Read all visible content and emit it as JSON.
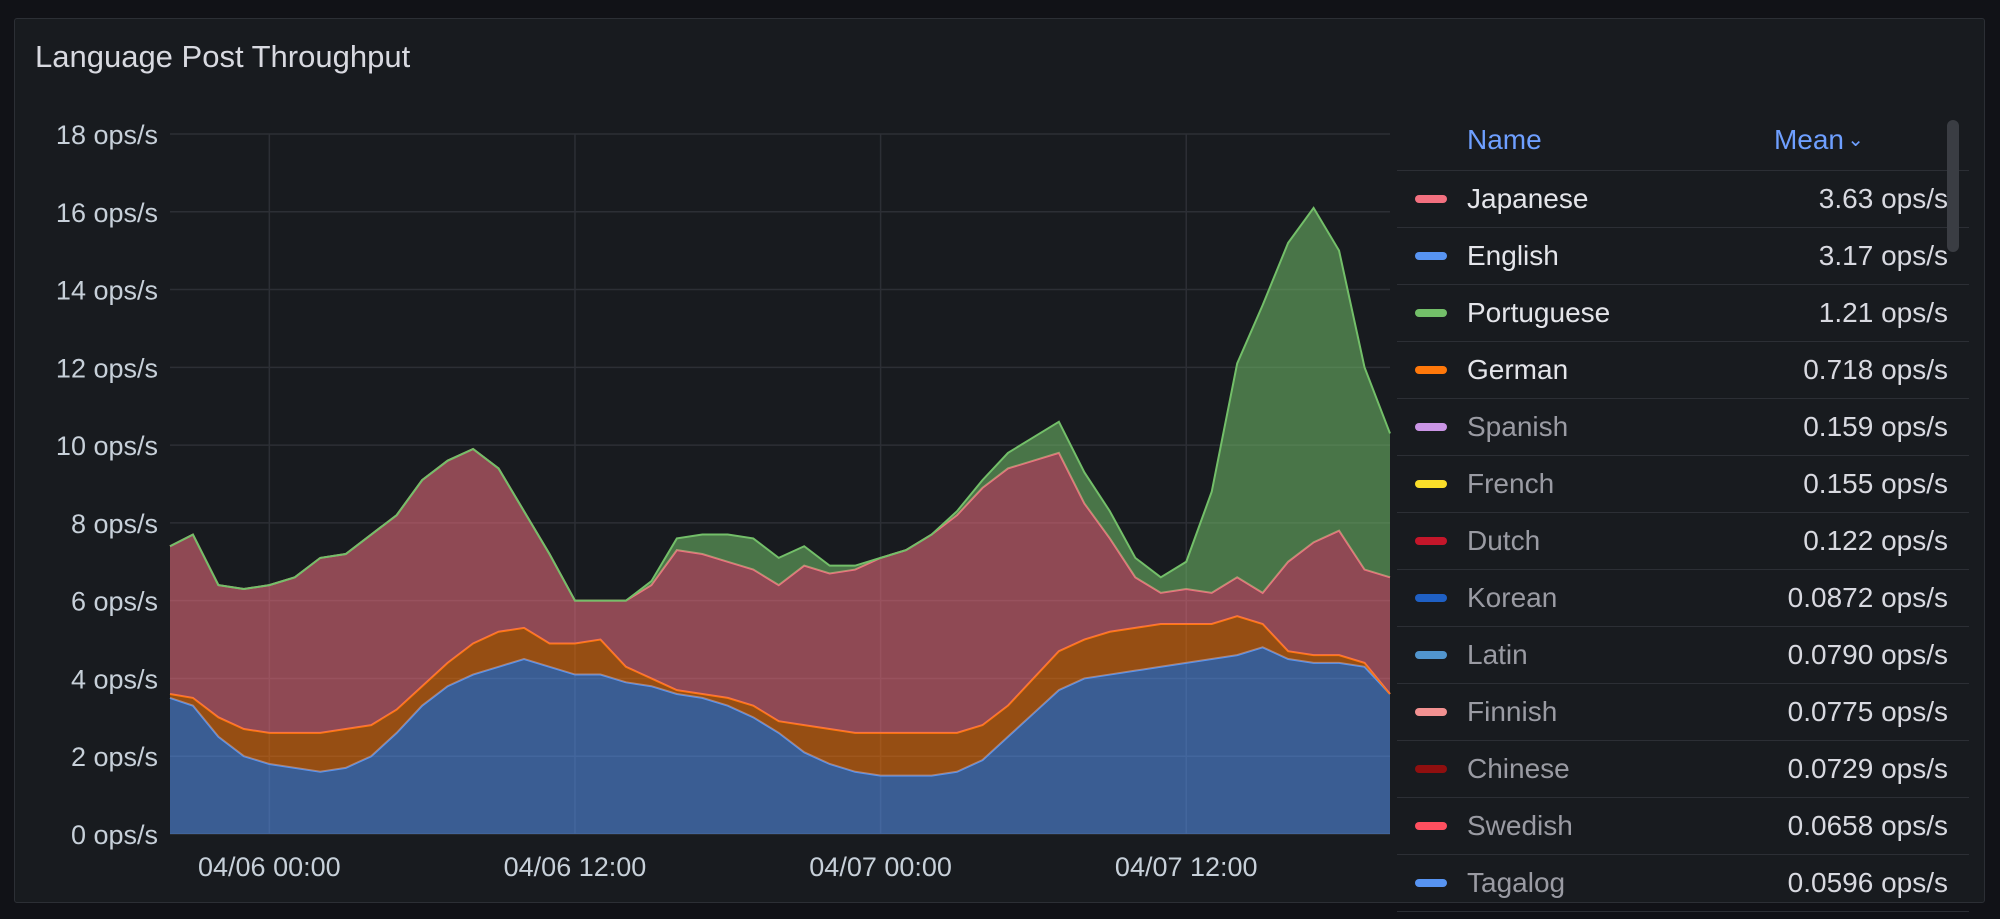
{
  "panel": {
    "title": "Language Post Throughput"
  },
  "legend": {
    "header_name": "Name",
    "header_mean": "Mean",
    "header_chevron": "⌄",
    "items": [
      {
        "name": "Japanese",
        "mean": "3.63 ops/s",
        "color": "#f2707f",
        "active": true
      },
      {
        "name": "English",
        "mean": "3.17 ops/s",
        "color": "#5794f2",
        "active": true
      },
      {
        "name": "Portuguese",
        "mean": "1.21 ops/s",
        "color": "#73bf69",
        "active": true
      },
      {
        "name": "German",
        "mean": "0.718 ops/s",
        "color": "#ff780a",
        "active": true
      },
      {
        "name": "Spanish",
        "mean": "0.159 ops/s",
        "color": "#ca95e5",
        "active": false
      },
      {
        "name": "French",
        "mean": "0.155 ops/s",
        "color": "#fade2a",
        "active": false
      },
      {
        "name": "Dutch",
        "mean": "0.122 ops/s",
        "color": "#c4162a",
        "active": false
      },
      {
        "name": "Korean",
        "mean": "0.0872 ops/s",
        "color": "#1f60c4",
        "active": false
      },
      {
        "name": "Latin",
        "mean": "0.0790 ops/s",
        "color": "#5195ce",
        "active": false
      },
      {
        "name": "Finnish",
        "mean": "0.0775 ops/s",
        "color": "#f29191",
        "active": false
      },
      {
        "name": "Chinese",
        "mean": "0.0729 ops/s",
        "color": "#8f0f0f",
        "active": false
      },
      {
        "name": "Swedish",
        "mean": "0.0658 ops/s",
        "color": "#ff4f5f",
        "active": false
      },
      {
        "name": "Tagalog",
        "mean": "0.0596 ops/s",
        "color": "#5794f2",
        "active": false
      }
    ]
  },
  "chart_data": {
    "type": "area",
    "stacked": true,
    "title": "Language Post Throughput",
    "xlabel": "",
    "ylabel": "",
    "y_unit": "ops/s",
    "ylim": [
      0,
      18
    ],
    "y_ticks": [
      "0 ops/s",
      "2 ops/s",
      "4 ops/s",
      "6 ops/s",
      "8 ops/s",
      "10 ops/s",
      "12 ops/s",
      "14 ops/s",
      "16 ops/s",
      "18 ops/s"
    ],
    "x_ticks": [
      "04/06 00:00",
      "04/06 12:00",
      "04/07 00:00",
      "04/07 12:00"
    ],
    "x_tick_hours": [
      0,
      12,
      24,
      36
    ],
    "xlim_hours": [
      -3.9,
      44
    ],
    "grid": true,
    "legend_position": "right",
    "x_hours": [
      -3.9,
      -3,
      -2,
      -1,
      0,
      1,
      2,
      3,
      4,
      5,
      6,
      7,
      8,
      9,
      10,
      11,
      12,
      13,
      14,
      15,
      16,
      17,
      18,
      19,
      20,
      21,
      22,
      23,
      24,
      25,
      26,
      27,
      28,
      29,
      30,
      31,
      32,
      33,
      34,
      35,
      36,
      37,
      38,
      39,
      40,
      41,
      42,
      43,
      44
    ],
    "series": [
      {
        "name": "English",
        "color": "#5794f2",
        "values": [
          3.5,
          3.3,
          2.5,
          2.0,
          1.8,
          1.7,
          1.6,
          1.7,
          2.0,
          2.6,
          3.3,
          3.8,
          4.1,
          4.3,
          4.5,
          4.3,
          4.1,
          4.1,
          3.9,
          3.8,
          3.6,
          3.5,
          3.3,
          3.0,
          2.6,
          2.1,
          1.8,
          1.6,
          1.5,
          1.5,
          1.5,
          1.6,
          1.9,
          2.5,
          3.1,
          3.7,
          4.0,
          4.1,
          4.2,
          4.3,
          4.4,
          4.5,
          4.6,
          4.8,
          4.5,
          4.4,
          4.4,
          4.3,
          3.6
        ]
      },
      {
        "name": "German",
        "color": "#ff780a",
        "values": [
          0.1,
          0.2,
          0.5,
          0.7,
          0.8,
          0.9,
          1.0,
          1.0,
          0.8,
          0.6,
          0.5,
          0.6,
          0.8,
          0.9,
          0.8,
          0.6,
          0.8,
          0.9,
          0.4,
          0.2,
          0.1,
          0.1,
          0.2,
          0.3,
          0.3,
          0.7,
          0.9,
          1.0,
          1.1,
          1.1,
          1.1,
          1.0,
          0.9,
          0.8,
          0.9,
          1.0,
          1.0,
          1.1,
          1.1,
          1.1,
          1.0,
          0.9,
          1.0,
          0.6,
          0.2,
          0.2,
          0.2,
          0.1,
          0.0
        ]
      },
      {
        "name": "Japanese",
        "color": "#f2707f",
        "values": [
          3.8,
          4.2,
          3.4,
          3.6,
          3.8,
          4.0,
          4.5,
          4.5,
          4.9,
          5.0,
          5.3,
          5.2,
          5.0,
          4.2,
          3.0,
          2.3,
          1.1,
          1.0,
          1.7,
          2.4,
          3.6,
          3.6,
          3.5,
          3.5,
          3.5,
          4.1,
          4.0,
          4.2,
          4.5,
          4.7,
          5.1,
          5.6,
          6.1,
          6.1,
          5.6,
          5.1,
          3.5,
          2.4,
          1.3,
          0.8,
          0.9,
          0.8,
          1.0,
          0.8,
          2.3,
          2.9,
          3.2,
          2.4,
          3.0
        ]
      },
      {
        "name": "Portuguese",
        "color": "#73bf69",
        "values": [
          0.0,
          0.0,
          0.0,
          0.0,
          0.0,
          0.0,
          0.0,
          0.0,
          0.0,
          0.0,
          0.0,
          0.0,
          0.0,
          0.0,
          0.0,
          0.0,
          0.0,
          0.0,
          0.0,
          0.1,
          0.3,
          0.5,
          0.7,
          0.8,
          0.7,
          0.5,
          0.2,
          0.1,
          0.0,
          0.0,
          0.0,
          0.1,
          0.2,
          0.4,
          0.6,
          0.8,
          0.8,
          0.7,
          0.5,
          0.4,
          0.7,
          2.6,
          5.5,
          7.4,
          8.2,
          8.6,
          7.2,
          5.2,
          3.7
        ]
      }
    ]
  }
}
